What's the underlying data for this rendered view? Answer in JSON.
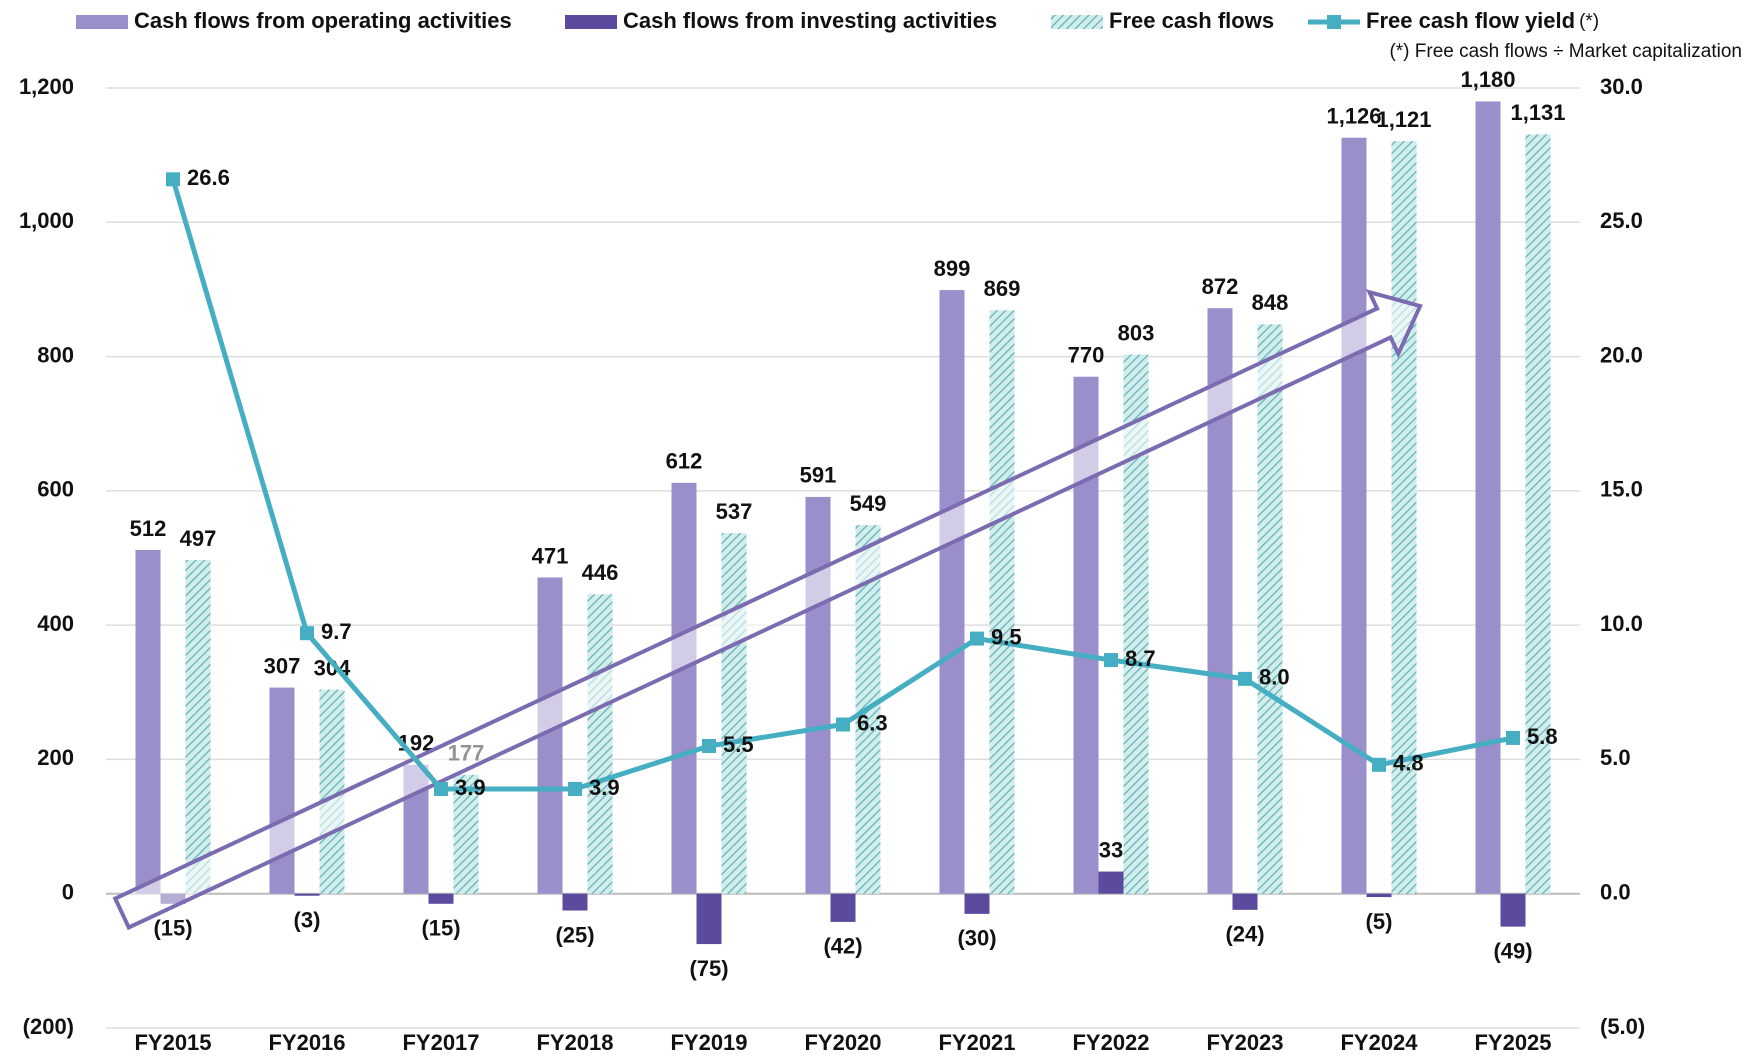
{
  "chart_data": {
    "type": "bar",
    "categories": [
      "FY2015",
      "FY2016",
      "FY2017",
      "FY2018",
      "FY2019",
      "FY2020",
      "FY2021",
      "FY2022",
      "FY2023",
      "FY2024",
      "FY2025"
    ],
    "series": [
      {
        "name": "Cash flows from operating activities",
        "color": "#9b8fcb",
        "values": [
          512,
          307,
          192,
          471,
          612,
          591,
          899,
          770,
          872,
          1126,
          1180
        ],
        "value_labels": [
          "512",
          "307",
          "192",
          "471",
          "612",
          "591",
          "899",
          "770",
          "872",
          "1,126",
          "1,180"
        ]
      },
      {
        "name": "Cash flows from investing activities",
        "color": "#5b4a9e",
        "values": [
          -15,
          -3,
          -15,
          -25,
          -75,
          -42,
          -30,
          33,
          -24,
          -5,
          -49
        ],
        "value_labels": [
          "(15)",
          "(3)",
          "(15)",
          "(25)",
          "(75)",
          "(42)",
          "(30)",
          "33",
          "(24)",
          "(5)",
          "(49)"
        ]
      },
      {
        "name": "Free cash flows",
        "color": "#5fb3b8",
        "values": [
          497,
          304,
          177,
          446,
          537,
          549,
          869,
          803,
          848,
          1121,
          1131
        ],
        "value_labels": [
          "497",
          "304",
          "177",
          "446",
          "537",
          "549",
          "869",
          "803",
          "848",
          "1,121",
          "1,131"
        ]
      },
      {
        "name": "Free cash flow yield",
        "type": "line",
        "axis": "y2",
        "color": "#45aec3",
        "values": [
          26.6,
          9.7,
          3.9,
          3.9,
          5.5,
          6.3,
          9.5,
          8.7,
          8.0,
          4.8,
          5.8
        ],
        "value_labels": [
          "26.6",
          "9.7",
          "3.9",
          "3.9",
          "5.5",
          "6.3",
          "9.5",
          "8.7",
          "8.0",
          "4.8",
          "5.8"
        ]
      }
    ],
    "yield_marker": "(*)",
    "footnote": "(*) Free cash flows ÷ Market capitalization",
    "ylim": [
      -200,
      1200
    ],
    "yticks": [
      {
        "value": -200,
        "label": "(200)"
      },
      0,
      200,
      400,
      600,
      800,
      {
        "value": 1000,
        "label": "1,000"
      },
      {
        "value": 1200,
        "label": "1,200"
      }
    ],
    "y2lim": [
      -5,
      30
    ],
    "y2ticks": [
      {
        "value": -5,
        "label": "(5.0)"
      },
      {
        "value": 0,
        "label": "0.0"
      },
      {
        "value": 5,
        "label": "5.0"
      },
      {
        "value": 10,
        "label": "10.0"
      },
      {
        "value": 15,
        "label": "15.0"
      },
      {
        "value": 20,
        "label": "20.0"
      },
      {
        "value": 25,
        "label": "25.0"
      },
      {
        "value": 30,
        "label": "30.0"
      }
    ],
    "grid": true
  }
}
